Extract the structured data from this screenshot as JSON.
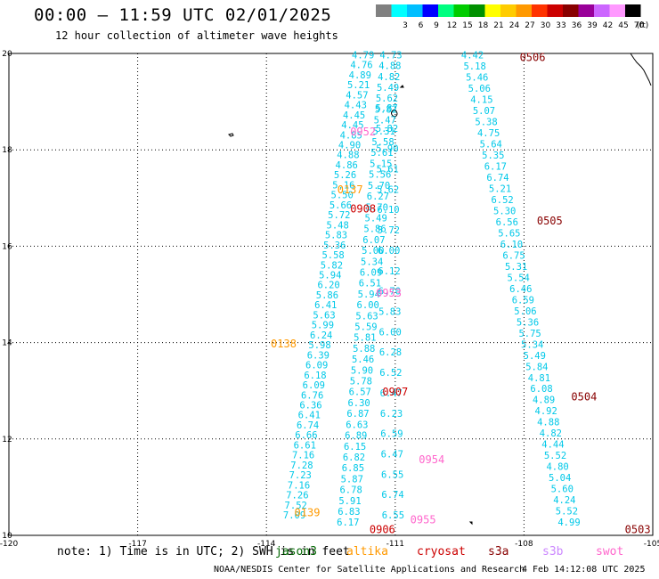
{
  "header": {
    "title": "00:00 – 11:59 UTC 02/01/2025",
    "subtitle": "12 hour collection of altimeter wave heights"
  },
  "colorbar": {
    "unit": "(ft)",
    "bins": [
      {
        "color": "#808080",
        "label": ""
      },
      {
        "color": "#00ffff",
        "label": "3"
      },
      {
        "color": "#00bfff",
        "label": "6"
      },
      {
        "color": "#0000ff",
        "label": "9"
      },
      {
        "color": "#00ff80",
        "label": "12"
      },
      {
        "color": "#00cc00",
        "label": "15"
      },
      {
        "color": "#009000",
        "label": "18"
      },
      {
        "color": "#ffff00",
        "label": "21"
      },
      {
        "color": "#ffcc00",
        "label": "24"
      },
      {
        "color": "#ff9900",
        "label": "27"
      },
      {
        "color": "#ff3300",
        "label": "30"
      },
      {
        "color": "#cc0000",
        "label": "33"
      },
      {
        "color": "#880000",
        "label": "36"
      },
      {
        "color": "#990099",
        "label": "39"
      },
      {
        "color": "#cc66ff",
        "label": "42"
      },
      {
        "color": "#ff99ff",
        "label": "45"
      },
      {
        "color": "#000000",
        "label": "70"
      }
    ]
  },
  "map": {
    "lon_range": [
      -120,
      -105
    ],
    "lat_range": [
      10,
      20
    ],
    "lon_ticks": [
      "-120",
      "-117",
      "-114",
      "-111",
      "-108",
      "-105"
    ],
    "lat_ticks": [
      "10",
      "12",
      "14",
      "16",
      "18",
      "20"
    ],
    "wave_color": "#00c8e8",
    "tracks": [
      {
        "name": "track-a",
        "lon_start": -111.75,
        "lon_end": -113.35,
        "lat_start": 19.9,
        "lat_end": 10.35,
        "values": [
          "4.79",
          "4.76",
          "4.89",
          "5.21",
          "4.57",
          "4.43",
          "4.45",
          "4.45",
          "4.85",
          "4.90",
          "4.88",
          "4.86",
          "5.26",
          "5.16",
          "5.50",
          "5.66",
          "5.72",
          "5.48",
          "5.83",
          "5.36",
          "5.58",
          "5.82",
          "5.94",
          "6.20",
          "5.86",
          "6.41",
          "5.63",
          "5.99",
          "6.24",
          "5.98",
          "6.39",
          "6.09",
          "6.18",
          "6.09",
          "6.76",
          "6.36",
          "6.41",
          "6.74",
          "6.66",
          "6.61",
          "7.16",
          "7.28",
          "7.23",
          "7.16",
          "7.26",
          "7.52",
          "7.09"
        ]
      },
      {
        "name": "track-b",
        "lon_start": -111.1,
        "lon_end": -112.1,
        "lat_start": 19.9,
        "lat_end": 10.2,
        "values": [
          "4.73",
          "4.88",
          "4.82",
          "5.49",
          "5.62",
          "5.82",
          "5.47",
          "5.31",
          "5.58",
          "5.61",
          "5.15",
          "5.56",
          "5.70",
          "6.27",
          "5.70",
          "5.49",
          "5.86",
          "6.07",
          "5.00",
          "5.34",
          "6.09",
          "6.51",
          "5.94",
          "6.00",
          "5.63",
          "5.59",
          "5.81",
          "5.88",
          "5.46",
          "5.90",
          "5.78",
          "6.57",
          "6.30",
          "6.87",
          "6.63",
          "6.89",
          "6.15",
          "6.82",
          "6.85",
          "5.87",
          "6.78",
          "5.91",
          "6.83",
          "6.17"
        ]
      },
      {
        "name": "track-c",
        "lon_start": -111.2,
        "lon_end": -111.05,
        "lat_start": 18.8,
        "lat_end": 10.35,
        "values": [
          "5.87",
          "5.82",
          "5.90",
          "5.61",
          "5.62",
          "6.10",
          "5.72",
          "6.00",
          "6.12",
          "6.70",
          "5.83",
          "6.00",
          "6.28",
          "6.52",
          "6.47",
          "6.23",
          "6.59",
          "6.47",
          "6.55",
          "6.74",
          "6.55"
        ]
      },
      {
        "name": "track-d",
        "lon_start": -109.2,
        "lon_end": -106.95,
        "lat_start": 19.9,
        "lat_end": 10.2,
        "values": [
          "4.42",
          "5.18",
          "5.46",
          "5.06",
          "4.15",
          "5.07",
          "5.38",
          "4.75",
          "5.64",
          "5.35",
          "6.17",
          "6.74",
          "5.21",
          "6.52",
          "5.30",
          "6.56",
          "5.65",
          "6.10",
          "6.75",
          "5.31",
          "5.54",
          "6.46",
          "6.59",
          "5.06",
          "5.36",
          "5.75",
          "5.34",
          "5.49",
          "5.84",
          "4.81",
          "6.08",
          "4.89",
          "4.92",
          "4.88",
          "4.82",
          "4.44",
          "5.52",
          "4.80",
          "5.04",
          "5.60",
          "4.24",
          "5.52",
          "4.99"
        ]
      }
    ],
    "time_labels": [
      {
        "text": "0506",
        "lon": -108.1,
        "lat": 19.84,
        "color": "#880000"
      },
      {
        "text": "0952",
        "lon": -112.05,
        "lat": 18.3,
        "color": "#ff66cc"
      },
      {
        "text": "0137",
        "lon": -112.35,
        "lat": 17.1,
        "color": "#ff9900"
      },
      {
        "text": "0908",
        "lon": -112.05,
        "lat": 16.7,
        "color": "#cc0000"
      },
      {
        "text": "0505",
        "lon": -107.7,
        "lat": 16.45,
        "color": "#880000"
      },
      {
        "text": "0953",
        "lon": -111.45,
        "lat": 14.95,
        "color": "#ff66cc"
      },
      {
        "text": "0138",
        "lon": -113.9,
        "lat": 13.9,
        "color": "#ff9900"
      },
      {
        "text": "0907",
        "lon": -111.3,
        "lat": 12.9,
        "color": "#cc0000"
      },
      {
        "text": "0504",
        "lon": -106.9,
        "lat": 12.8,
        "color": "#880000"
      },
      {
        "text": "0954",
        "lon": -110.45,
        "lat": 11.5,
        "color": "#ff66cc"
      },
      {
        "text": "0139",
        "lon": -113.35,
        "lat": 10.4,
        "color": "#ff9900"
      },
      {
        "text": "0955",
        "lon": -110.65,
        "lat": 10.25,
        "color": "#ff66cc"
      },
      {
        "text": "0906",
        "lon": -111.6,
        "lat": 10.05,
        "color": "#cc0000"
      },
      {
        "text": "0503",
        "lon": -105.65,
        "lat": 10.05,
        "color": "#880000"
      }
    ]
  },
  "note": "note: 1) Time is in UTC; 2) SWH is in feet",
  "missions": [
    {
      "name": "jason3",
      "color": "#006600"
    },
    {
      "name": "altika",
      "color": "#ff9900"
    },
    {
      "name": "cryosat",
      "color": "#cc0000"
    },
    {
      "name": "s3a",
      "color": "#880000"
    },
    {
      "name": "s3b",
      "color": "#cc88ff"
    },
    {
      "name": "swot",
      "color": "#ff66cc"
    }
  ],
  "footer": {
    "center": "NOAA/NESDIS Center for Satellite Applications and Research",
    "time": "4 Feb 14:12:08 UTC 2025"
  }
}
